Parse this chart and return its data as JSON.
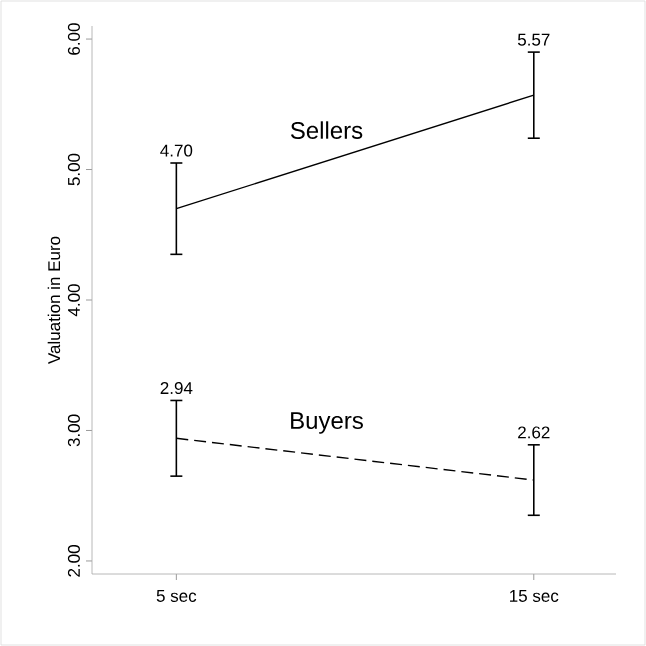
{
  "chart_data": {
    "type": "line",
    "ylabel": "Valuation in Euro",
    "categories": [
      "5 sec",
      "15 sec"
    ],
    "ylim": [
      1.9,
      6.1
    ],
    "yticks": [
      {
        "value": 2,
        "label": "2.00"
      },
      {
        "value": 3,
        "label": "3.00"
      },
      {
        "value": 4,
        "label": "4.00"
      },
      {
        "value": 5,
        "label": "5.00"
      },
      {
        "value": 6,
        "label": "6.00"
      }
    ],
    "series": [
      {
        "name": "Sellers",
        "color": "#000000",
        "line_style": "solid",
        "values": [
          4.7,
          5.57
        ],
        "value_labels": [
          "4.70",
          "5.57"
        ],
        "errors": [
          0.35,
          0.33
        ]
      },
      {
        "name": "Buyers",
        "color": "#000000",
        "line_style": "dashed",
        "values": [
          2.94,
          2.62
        ],
        "value_labels": [
          "2.94",
          "2.62"
        ],
        "errors": [
          0.29,
          0.27
        ]
      }
    ],
    "grid": false,
    "marker": "none"
  }
}
